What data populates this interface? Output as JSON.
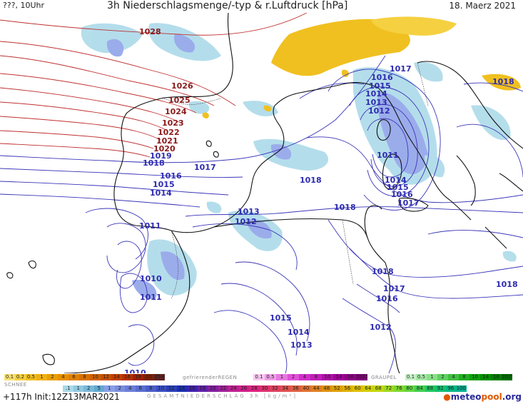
{
  "header": {
    "left": "???, 10Uhr",
    "title": "3h Niederschlagsmenge/-typ & r.Luftdruck [hPa]",
    "date": "18. Maerz 2021"
  },
  "map": {
    "pressure_labels_red": [
      "1028",
      "1026",
      "1025",
      "1024",
      "1023",
      "1022",
      "1021",
      "1020"
    ],
    "pressure_labels_blue": [
      "1019",
      "1018",
      "1017",
      "1016",
      "1015",
      "1014",
      "1011",
      "1010",
      "1011",
      "1013",
      "1012",
      "1018",
      "1018",
      "1017",
      "1016",
      "1015",
      "1014",
      "1013",
      "1012",
      "1011",
      "1014",
      "1015",
      "1016",
      "1017",
      "1018",
      "1018",
      "1017",
      "1016",
      "1015",
      "1014",
      "1013",
      "1012",
      "1018",
      "1010"
    ]
  },
  "legend": {
    "snow_label": "SCHNEE",
    "snow_top": [
      "0.1",
      "0.2",
      "0.5",
      "1",
      "2",
      "4",
      "6",
      "8",
      "10",
      "12",
      "14",
      "16",
      "18",
      "20",
      "25+"
    ],
    "freezing_label": "gefrierenderREGEN",
    "freezing_values": [
      "0.1",
      "0.5",
      "1",
      "2",
      "4",
      "8",
      "10",
      "14",
      "16",
      "2025+"
    ],
    "graupel_label": "GRAUPEL",
    "graupel_values": [
      "0.1",
      "0.5",
      "1",
      "2",
      "4",
      "8",
      "10",
      "14",
      "16",
      "2025+"
    ],
    "total_values": [
      ".1",
      "1",
      "2",
      "5",
      "1",
      "2",
      "4",
      "6",
      "8",
      "10",
      "12",
      "14",
      "16",
      "18",
      "20",
      "22",
      "24",
      "26",
      "28",
      "30",
      "32",
      "34",
      "36",
      "40",
      "44",
      "48",
      "52",
      "56",
      "60",
      "64",
      "68",
      "72",
      "76",
      "80",
      "84",
      "88",
      "92",
      "96",
      "100"
    ],
    "total_label": "GESAMTNIEDERSCHLAG 3h [kg/m²]"
  },
  "footer": {
    "init": "+117h Init:12Z13MAR2021",
    "logo_a": "meteo",
    "logo_b": "pool",
    "logo_c": ".org"
  },
  "colors": {
    "red_isobar": "#c03030",
    "blue_isobar": "#3a36b8",
    "coast": "#111111",
    "snow": "#f0c020",
    "rain_light": "#a8d8e8",
    "rain_mid": "#8a9ee8"
  }
}
